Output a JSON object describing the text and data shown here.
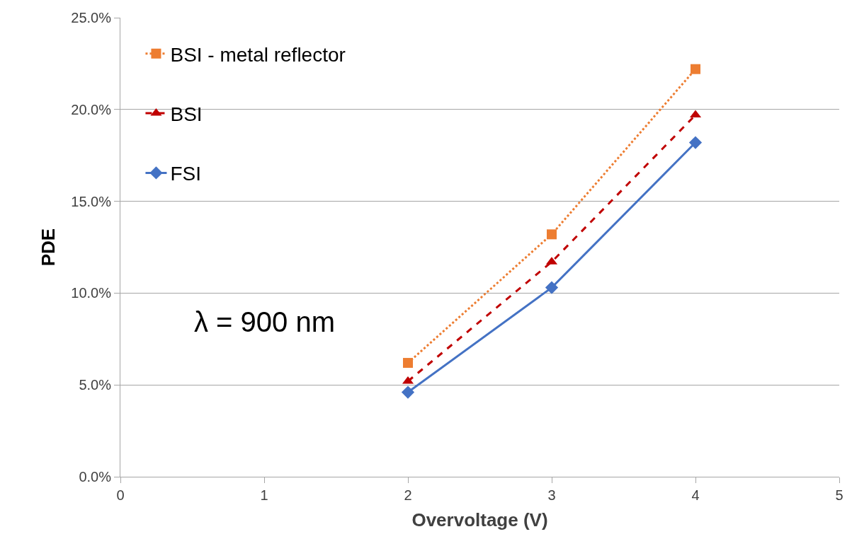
{
  "chart_data": {
    "type": "line",
    "xlabel": "Overvoltage (V)",
    "ylabel": "PDE",
    "x": [
      2,
      3,
      4
    ],
    "series": [
      {
        "name": "BSI - metal reflector",
        "color": "#ed7d31",
        "values": [
          6.2,
          13.2,
          22.2
        ],
        "marker": "square",
        "line_style": "dotted"
      },
      {
        "name": "BSI",
        "color": "#c00000",
        "values": [
          5.2,
          11.7,
          19.7
        ],
        "marker": "triangle",
        "line_style": "dashed"
      },
      {
        "name": "FSI",
        "color": "#4472c4",
        "values": [
          4.6,
          10.3,
          18.2
        ],
        "marker": "diamond",
        "line_style": "solid"
      }
    ],
    "xlim": [
      0,
      5
    ],
    "xticks": [
      0,
      1,
      2,
      3,
      4,
      5
    ],
    "ylim": [
      0,
      25
    ],
    "yticks": [
      {
        "value": 0,
        "label": "0.0%"
      },
      {
        "value": 5,
        "label": "5.0%"
      },
      {
        "value": 10,
        "label": "10.0%"
      },
      {
        "value": 15,
        "label": "15.0%"
      },
      {
        "value": 20,
        "label": "20.0%"
      },
      {
        "value": 25,
        "label": "25.0%"
      }
    ],
    "grid": "y",
    "legend": "top left",
    "annotations": [
      "λ = 900 nm"
    ]
  }
}
